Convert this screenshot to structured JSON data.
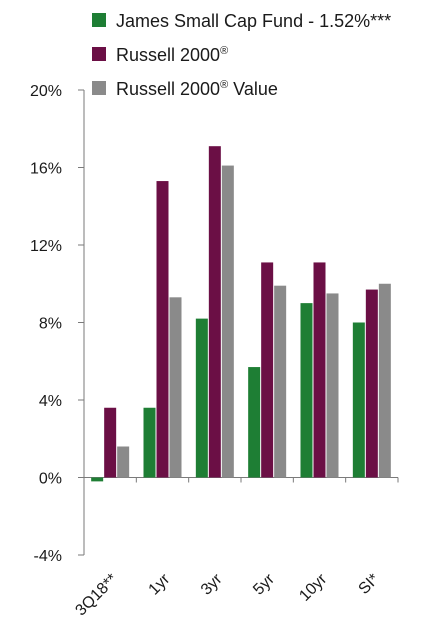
{
  "chart_data": {
    "type": "bar",
    "categories": [
      "3Q18**",
      "1yr",
      "3yr",
      "5yr",
      "10yr",
      "SI*"
    ],
    "series": [
      {
        "name": "James Small Cap Fund - 1.52%***",
        "color": "#1e7e34",
        "values": [
          -0.2,
          3.6,
          8.2,
          5.7,
          9.0,
          8.0
        ]
      },
      {
        "name": "Russell 2000",
        "name_sup": "®",
        "color": "#6b0f45",
        "values": [
          3.6,
          15.3,
          17.1,
          11.1,
          11.1,
          9.7
        ]
      },
      {
        "name": "Russell 2000",
        "name_sup": "® Value",
        "color": "#8a8a8a",
        "values": [
          1.6,
          9.3,
          16.1,
          9.9,
          9.5,
          10.0
        ]
      }
    ],
    "ylim": [
      -4,
      20
    ],
    "yticks": [
      "-4%",
      "0%",
      "4%",
      "8%",
      "12%",
      "16%",
      "20%"
    ],
    "ytick_values": [
      -4,
      0,
      4,
      8,
      12,
      16,
      20
    ],
    "legend_position": "top",
    "grid": false
  }
}
